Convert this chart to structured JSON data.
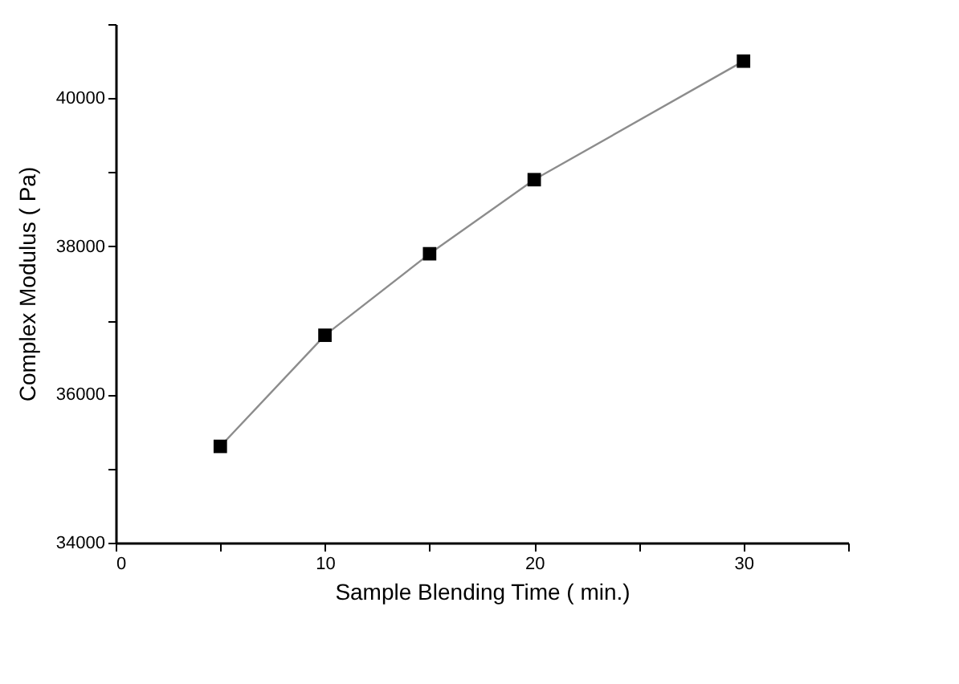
{
  "chart_data": {
    "type": "line",
    "xlabel": "Sample Blending Time ( min.)",
    "ylabel": "Complex Modulus ( Pa)",
    "x": [
      5,
      10,
      15,
      20,
      30
    ],
    "series": [
      {
        "color": "#000000",
        "values": [
          35300,
          36800,
          37900,
          38900,
          40500
        ]
      }
    ],
    "xlim": [
      0,
      35
    ],
    "xticks": [
      0,
      {
        "value": 5,
        "label": null
      },
      10,
      {
        "value": 15,
        "label": null
      },
      20,
      {
        "value": 25,
        "label": null
      },
      30,
      {
        "value": 35,
        "label": null
      }
    ],
    "ylim": [
      34000,
      41000
    ],
    "yticks": [
      34000,
      {
        "value": 35000,
        "label": null
      },
      36000,
      {
        "value": 37000,
        "label": null
      },
      38000,
      {
        "value": 39000,
        "label": null
      },
      40000,
      {
        "value": 41000,
        "label": null
      }
    ],
    "marker": "square",
    "line_style": "solid",
    "grid": false
  }
}
